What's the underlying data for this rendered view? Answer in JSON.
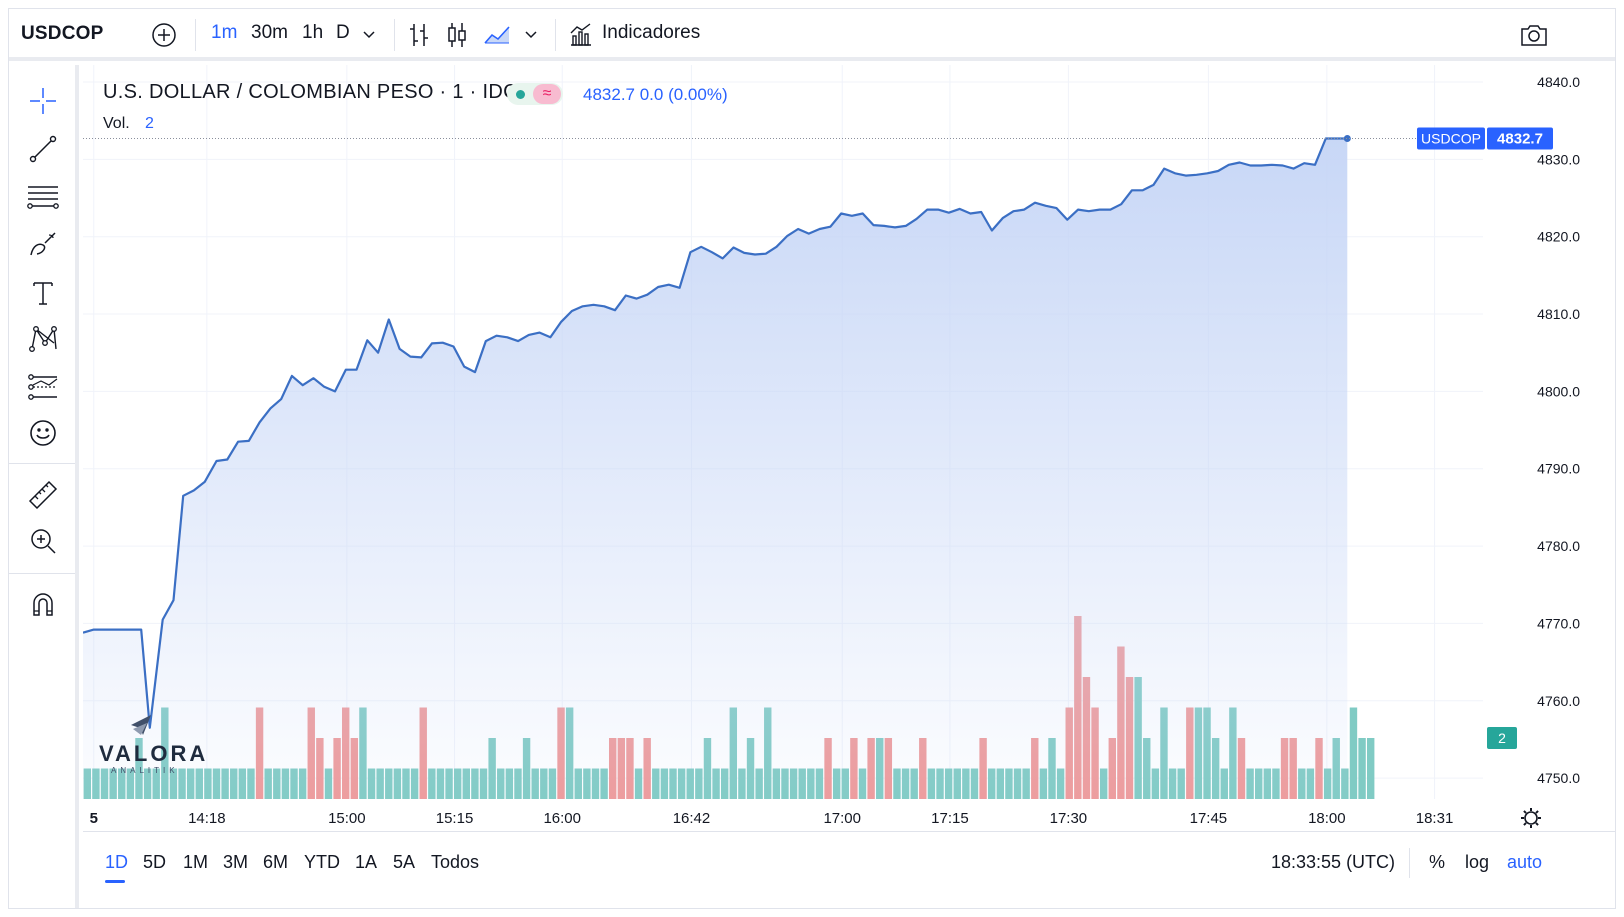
{
  "toolbar": {
    "symbol": "USDCOP",
    "intervals": [
      "1m",
      "30m",
      "1h",
      "D"
    ],
    "active_interval": "1m",
    "indicators_label": "Indicadores"
  },
  "legend": {
    "title": "U.S. DOLLAR / COLOMBIAN PESO · 1 · IDC",
    "price_line": "4832.7 0.0 (0.00%)",
    "volume_label": "Vol.",
    "volume_value": "2",
    "delay_symbol": "≈"
  },
  "watermark": {
    "brand": "VALORA",
    "sub": "ANALITIK"
  },
  "range_bar": {
    "ranges": [
      "1D",
      "5D",
      "1M",
      "3M",
      "6M",
      "YTD",
      "1A",
      "5A",
      "Todos"
    ],
    "active_range": "1D",
    "clock": "18:33:55 (UTC)",
    "percent_label": "%",
    "log_label": "log",
    "auto_label": "auto"
  },
  "colors": {
    "line": "#3b6fc4",
    "area_top": "#c9d8f7",
    "up_volume": "#80cbc4",
    "down_volume": "#ef9a9a",
    "accent": "#2962ff",
    "price_tag": "#2962ff",
    "volume_tag": "#26a69a"
  },
  "chart_data": {
    "type": "area",
    "title": "U.S. DOLLAR / COLOMBIAN PESO · 1 · IDC",
    "symbol_tag": "USDCOP",
    "last_price_label": "4832.7",
    "volume_tag_label": "2",
    "ylim": [
      4747.3,
      4842.2
    ],
    "y_ticks": [
      4750,
      4760,
      4770,
      4780,
      4790,
      4800,
      4810,
      4820,
      4830,
      4840
    ],
    "y_tick_labels": [
      "4750.0",
      "4760.0",
      "4770.0",
      "4780.0",
      "4790.0",
      "4800.0",
      "4810.0",
      "4820.0",
      "4830.0",
      "4840.0"
    ],
    "x_tick_labels": [
      {
        "label": "5",
        "bar": 1,
        "bold": true
      },
      {
        "label": "14:18",
        "bar": 11.5
      },
      {
        "label": "15:00",
        "bar": 24.5
      },
      {
        "label": "15:15",
        "bar": 34.5
      },
      {
        "label": "16:00",
        "bar": 44.5
      },
      {
        "label": "16:42",
        "bar": 56.5
      },
      {
        "label": "17:00",
        "bar": 70.5
      },
      {
        "label": "17:15",
        "bar": 80.5
      },
      {
        "label": "17:30",
        "bar": 91.5
      },
      {
        "label": "17:45",
        "bar": 104.5
      },
      {
        "label": "18:00",
        "bar": 115.5
      },
      {
        "label": "18:31",
        "bar": 125.5
      }
    ],
    "x_bar_span": 130,
    "price_series": [
      {
        "i": 0,
        "v": 4768.8
      },
      {
        "i": 1,
        "v": 4769.2
      },
      {
        "i": 5.4,
        "v": 4769.2
      },
      {
        "i": 6.2,
        "v": 4756.5
      },
      {
        "i": 7.4,
        "v": 4770.5
      },
      {
        "i": 8.4,
        "v": 4773
      },
      {
        "i": 9.3,
        "v": 4786.5
      },
      {
        "i": 10.3,
        "v": 4787.2
      },
      {
        "i": 11.3,
        "v": 4788.3
      },
      {
        "i": 12.4,
        "v": 4791
      },
      {
        "i": 13.4,
        "v": 4791.2
      },
      {
        "i": 14.4,
        "v": 4793.5
      },
      {
        "i": 15.4,
        "v": 4793.6
      },
      {
        "i": 16.4,
        "v": 4796
      },
      {
        "i": 17.4,
        "v": 4797.8
      },
      {
        "i": 18.4,
        "v": 4799
      },
      {
        "i": 19.4,
        "v": 4802
      },
      {
        "i": 20.4,
        "v": 4800.8
      },
      {
        "i": 21.4,
        "v": 4801.7
      },
      {
        "i": 22.4,
        "v": 4800.6
      },
      {
        "i": 23.4,
        "v": 4800
      },
      {
        "i": 24.4,
        "v": 4802.8
      },
      {
        "i": 25.4,
        "v": 4802.8
      },
      {
        "i": 26.4,
        "v": 4806.6
      },
      {
        "i": 27.4,
        "v": 4805
      },
      {
        "i": 28.4,
        "v": 4809.3
      },
      {
        "i": 29.4,
        "v": 4805.5
      },
      {
        "i": 30.4,
        "v": 4804.5
      },
      {
        "i": 31.4,
        "v": 4804.4
      },
      {
        "i": 32.4,
        "v": 4806.2
      },
      {
        "i": 33.4,
        "v": 4806.3
      },
      {
        "i": 34.4,
        "v": 4805.8
      },
      {
        "i": 35.4,
        "v": 4803.2
      },
      {
        "i": 36.4,
        "v": 4802.5
      },
      {
        "i": 37.4,
        "v": 4806.5
      },
      {
        "i": 38.4,
        "v": 4807.2
      },
      {
        "i": 39.4,
        "v": 4807
      },
      {
        "i": 40.4,
        "v": 4806.5
      },
      {
        "i": 41.4,
        "v": 4807.3
      },
      {
        "i": 42.4,
        "v": 4807.6
      },
      {
        "i": 43.4,
        "v": 4807
      },
      {
        "i": 44.4,
        "v": 4809
      },
      {
        "i": 45.4,
        "v": 4810.4
      },
      {
        "i": 46.4,
        "v": 4811
      },
      {
        "i": 47.4,
        "v": 4811.2
      },
      {
        "i": 48.4,
        "v": 4811
      },
      {
        "i": 49.4,
        "v": 4810.5
      },
      {
        "i": 50.4,
        "v": 4812.4
      },
      {
        "i": 51.4,
        "v": 4812
      },
      {
        "i": 52.4,
        "v": 4812.5
      },
      {
        "i": 53.4,
        "v": 4813.5
      },
      {
        "i": 54.4,
        "v": 4813.8
      },
      {
        "i": 55.4,
        "v": 4813.4
      },
      {
        "i": 56.4,
        "v": 4818
      },
      {
        "i": 57.4,
        "v": 4818.7
      },
      {
        "i": 58.4,
        "v": 4818
      },
      {
        "i": 59.4,
        "v": 4817.2
      },
      {
        "i": 60.4,
        "v": 4818.6
      },
      {
        "i": 61.4,
        "v": 4817.9
      },
      {
        "i": 62.4,
        "v": 4817.7
      },
      {
        "i": 63.4,
        "v": 4817.8
      },
      {
        "i": 64.4,
        "v": 4818.7
      },
      {
        "i": 65.4,
        "v": 4820.1
      },
      {
        "i": 66.4,
        "v": 4821
      },
      {
        "i": 67.4,
        "v": 4820.4
      },
      {
        "i": 68.4,
        "v": 4821
      },
      {
        "i": 69.4,
        "v": 4821.3
      },
      {
        "i": 70.4,
        "v": 4823
      },
      {
        "i": 71.4,
        "v": 4822.7
      },
      {
        "i": 72.4,
        "v": 4823
      },
      {
        "i": 73.4,
        "v": 4821.5
      },
      {
        "i": 74.4,
        "v": 4821.4
      },
      {
        "i": 75.4,
        "v": 4821.2
      },
      {
        "i": 76.4,
        "v": 4821.4
      },
      {
        "i": 77.4,
        "v": 4822.3
      },
      {
        "i": 78.4,
        "v": 4823.5
      },
      {
        "i": 79.4,
        "v": 4823.5
      },
      {
        "i": 80.4,
        "v": 4823.1
      },
      {
        "i": 81.4,
        "v": 4823.6
      },
      {
        "i": 82.4,
        "v": 4823
      },
      {
        "i": 83.4,
        "v": 4823.2
      },
      {
        "i": 84.4,
        "v": 4820.8
      },
      {
        "i": 85.4,
        "v": 4822.4
      },
      {
        "i": 86.4,
        "v": 4823.3
      },
      {
        "i": 87.4,
        "v": 4823.5
      },
      {
        "i": 88.4,
        "v": 4824.4
      },
      {
        "i": 89.4,
        "v": 4824
      },
      {
        "i": 90.4,
        "v": 4823.7
      },
      {
        "i": 91.4,
        "v": 4822.2
      },
      {
        "i": 92.4,
        "v": 4823.5
      },
      {
        "i": 93.4,
        "v": 4823.3
      },
      {
        "i": 94.4,
        "v": 4823.5
      },
      {
        "i": 95.4,
        "v": 4823.5
      },
      {
        "i": 96.4,
        "v": 4824.2
      },
      {
        "i": 97.4,
        "v": 4826
      },
      {
        "i": 98.4,
        "v": 4826
      },
      {
        "i": 99.4,
        "v": 4826.7
      },
      {
        "i": 100.4,
        "v": 4828.8
      },
      {
        "i": 101.4,
        "v": 4828.2
      },
      {
        "i": 102.4,
        "v": 4827.9
      },
      {
        "i": 103.4,
        "v": 4828
      },
      {
        "i": 104.4,
        "v": 4828.2
      },
      {
        "i": 105.4,
        "v": 4828.5
      },
      {
        "i": 106.4,
        "v": 4829.3
      },
      {
        "i": 107.4,
        "v": 4829.6
      },
      {
        "i": 108.4,
        "v": 4829.2
      },
      {
        "i": 109.4,
        "v": 4829.2
      },
      {
        "i": 110.4,
        "v": 4829.3
      },
      {
        "i": 111.4,
        "v": 4829.2
      },
      {
        "i": 112.4,
        "v": 4828.8
      },
      {
        "i": 113.4,
        "v": 4829.5
      },
      {
        "i": 114.4,
        "v": 4829.3
      },
      {
        "i": 115.4,
        "v": 4832.7
      },
      {
        "i": 116.4,
        "v": 4832.7
      },
      {
        "i": 117.4,
        "v": 4832.7
      }
    ],
    "volume_max": 6,
    "volume_bars": [
      [
        1,
        "u"
      ],
      [
        1,
        "u"
      ],
      [
        1,
        "u"
      ],
      [
        1,
        "u"
      ],
      [
        1,
        "u"
      ],
      [
        1,
        "u"
      ],
      [
        2,
        "u"
      ],
      [
        1,
        "u"
      ],
      [
        1,
        "u"
      ],
      [
        3,
        "u"
      ],
      [
        1,
        "u"
      ],
      [
        1,
        "u"
      ],
      [
        1,
        "u"
      ],
      [
        1,
        "u"
      ],
      [
        1,
        "u"
      ],
      [
        1,
        "u"
      ],
      [
        1,
        "u"
      ],
      [
        1,
        "u"
      ],
      [
        1,
        "u"
      ],
      [
        1,
        "u"
      ],
      [
        3,
        "d"
      ],
      [
        1,
        "u"
      ],
      [
        1,
        "u"
      ],
      [
        1,
        "u"
      ],
      [
        1,
        "u"
      ],
      [
        1,
        "u"
      ],
      [
        3,
        "d"
      ],
      [
        2,
        "d"
      ],
      [
        1,
        "u"
      ],
      [
        2,
        "d"
      ],
      [
        3,
        "d"
      ],
      [
        2,
        "d"
      ],
      [
        3,
        "u"
      ],
      [
        1,
        "u"
      ],
      [
        1,
        "u"
      ],
      [
        1,
        "u"
      ],
      [
        1,
        "u"
      ],
      [
        1,
        "u"
      ],
      [
        1,
        "u"
      ],
      [
        3,
        "d"
      ],
      [
        1,
        "u"
      ],
      [
        1,
        "u"
      ],
      [
        1,
        "u"
      ],
      [
        1,
        "u"
      ],
      [
        1,
        "u"
      ],
      [
        1,
        "u"
      ],
      [
        1,
        "u"
      ],
      [
        2,
        "u"
      ],
      [
        1,
        "u"
      ],
      [
        1,
        "u"
      ],
      [
        1,
        "u"
      ],
      [
        2,
        "u"
      ],
      [
        1,
        "u"
      ],
      [
        1,
        "u"
      ],
      [
        1,
        "u"
      ],
      [
        3,
        "d"
      ],
      [
        3,
        "u"
      ],
      [
        1,
        "u"
      ],
      [
        1,
        "u"
      ],
      [
        1,
        "u"
      ],
      [
        1,
        "u"
      ],
      [
        2,
        "d"
      ],
      [
        2,
        "d"
      ],
      [
        2,
        "d"
      ],
      [
        1,
        "u"
      ],
      [
        2,
        "d"
      ],
      [
        1,
        "u"
      ],
      [
        1,
        "u"
      ],
      [
        1,
        "u"
      ],
      [
        1,
        "u"
      ],
      [
        1,
        "u"
      ],
      [
        1,
        "u"
      ],
      [
        2,
        "u"
      ],
      [
        1,
        "u"
      ],
      [
        1,
        "u"
      ],
      [
        3,
        "u"
      ],
      [
        1,
        "u"
      ],
      [
        2,
        "u"
      ],
      [
        1,
        "u"
      ],
      [
        3,
        "u"
      ],
      [
        1,
        "u"
      ],
      [
        1,
        "u"
      ],
      [
        1,
        "u"
      ],
      [
        1,
        "u"
      ],
      [
        1,
        "u"
      ],
      [
        1,
        "u"
      ],
      [
        2,
        "d"
      ],
      [
        1,
        "u"
      ],
      [
        1,
        "u"
      ],
      [
        2,
        "d"
      ],
      [
        1,
        "u"
      ],
      [
        2,
        "d"
      ],
      [
        2,
        "u"
      ],
      [
        2,
        "d"
      ],
      [
        1,
        "u"
      ],
      [
        1,
        "u"
      ],
      [
        1,
        "u"
      ],
      [
        2,
        "d"
      ],
      [
        1,
        "u"
      ],
      [
        1,
        "u"
      ],
      [
        1,
        "u"
      ],
      [
        1,
        "u"
      ],
      [
        1,
        "u"
      ],
      [
        1,
        "u"
      ],
      [
        2,
        "d"
      ],
      [
        1,
        "u"
      ],
      [
        1,
        "u"
      ],
      [
        1,
        "u"
      ],
      [
        1,
        "u"
      ],
      [
        1,
        "u"
      ],
      [
        2,
        "d"
      ],
      [
        1,
        "u"
      ],
      [
        2,
        "u"
      ],
      [
        1,
        "u"
      ],
      [
        3,
        "d"
      ],
      [
        6,
        "d"
      ],
      [
        4,
        "d"
      ],
      [
        3,
        "d"
      ],
      [
        1,
        "u"
      ],
      [
        2,
        "d"
      ],
      [
        5,
        "d"
      ],
      [
        4,
        "d"
      ],
      [
        4,
        "u"
      ],
      [
        2,
        "u"
      ],
      [
        1,
        "u"
      ],
      [
        3,
        "u"
      ],
      [
        1,
        "u"
      ],
      [
        1,
        "u"
      ],
      [
        3,
        "d"
      ],
      [
        3,
        "u"
      ],
      [
        3,
        "u"
      ],
      [
        2,
        "u"
      ],
      [
        1,
        "u"
      ],
      [
        3,
        "u"
      ],
      [
        2,
        "d"
      ],
      [
        1,
        "u"
      ],
      [
        1,
        "u"
      ],
      [
        1,
        "u"
      ],
      [
        1,
        "u"
      ],
      [
        2,
        "d"
      ],
      [
        2,
        "d"
      ],
      [
        1,
        "u"
      ],
      [
        1,
        "u"
      ],
      [
        2,
        "d"
      ],
      [
        1,
        "u"
      ],
      [
        2,
        "u"
      ],
      [
        1,
        "u"
      ],
      [
        3,
        "u"
      ],
      [
        2,
        "u"
      ],
      [
        2,
        "u"
      ]
    ]
  }
}
